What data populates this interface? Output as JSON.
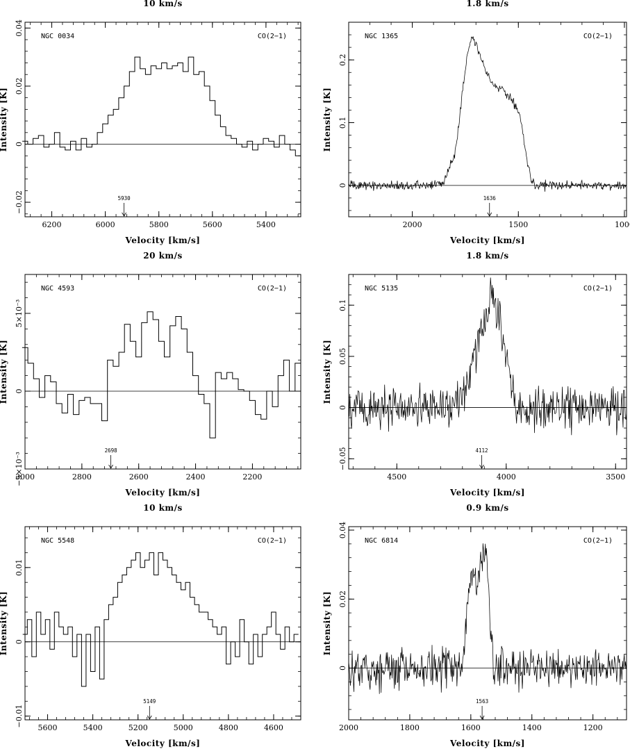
{
  "chart_data": [
    {
      "type": "line",
      "resolution": "10 km/s",
      "galaxy": "NGC 0034",
      "line": "CO(2−1)",
      "xlabel": "Velocity  [km/s]",
      "ylabel": "Intensity [K]",
      "xlim": [
        6300,
        5270
      ],
      "ylim": [
        -0.025,
        0.042
      ],
      "xticks": [
        6200,
        6000,
        5800,
        5600,
        5400
      ],
      "xtick_labels": [
        "6200",
        "6000",
        "5800",
        "5600",
        "5400"
      ],
      "yticks": [
        -0.02,
        0,
        0.02,
        0.04
      ],
      "ytick_labels": [
        "−0.02",
        "0",
        "0.02",
        "0.04"
      ],
      "marker": {
        "x": 5930,
        "label": "5930"
      },
      "series": [
        {
          "x": [
            6300,
            6280,
            6260,
            6240,
            6220,
            6200,
            6180,
            6160,
            6140,
            6120,
            6100,
            6080,
            6060,
            6040,
            6020,
            6000,
            5980,
            5960,
            5940,
            5920,
            5900,
            5880,
            5860,
            5840,
            5820,
            5800,
            5780,
            5760,
            5740,
            5720,
            5700,
            5680,
            5660,
            5640,
            5620,
            5600,
            5580,
            5560,
            5540,
            5520,
            5500,
            5480,
            5460,
            5440,
            5420,
            5400,
            5380,
            5360,
            5340,
            5320,
            5300,
            5280
          ],
          "values": [
            0.001,
            0.0,
            0.002,
            0.003,
            -0.001,
            0.0,
            0.004,
            -0.001,
            -0.002,
            0.001,
            -0.002,
            0.002,
            -0.001,
            0.0,
            0.004,
            0.007,
            0.01,
            0.012,
            0.016,
            0.02,
            0.025,
            0.03,
            0.026,
            0.024,
            0.027,
            0.026,
            0.028,
            0.026,
            0.027,
            0.028,
            0.025,
            0.03,
            0.024,
            0.025,
            0.02,
            0.015,
            0.01,
            0.006,
            0.003,
            0.002,
            0.0,
            -0.001,
            0.001,
            -0.002,
            0.0,
            0.002,
            0.001,
            -0.001,
            0.003,
            0.0,
            -0.002,
            -0.004
          ]
        }
      ]
    },
    {
      "type": "line",
      "resolution": "1.8 km/s",
      "galaxy": "NGC 1365",
      "line": "CO(2−1)",
      "xlabel": "Velocity  [km/s]",
      "ylabel": "Intensity [K]",
      "xlim": [
        2300,
        990
      ],
      "ylim": [
        -0.05,
        0.26
      ],
      "xticks": [
        2000,
        1500,
        1000
      ],
      "xtick_labels": [
        "2000",
        "1500",
        "1000"
      ],
      "yticks": [
        0,
        0.1,
        0.2
      ],
      "ytick_labels": [
        "0",
        "0.1",
        "0.2"
      ],
      "marker": {
        "x": 1636,
        "label": "1636"
      },
      "series": [
        {
          "x": [
            2300,
            1900,
            1850,
            1800,
            1780,
            1760,
            1740,
            1720,
            1700,
            1680,
            1650,
            1620,
            1600,
            1580,
            1560,
            1540,
            1520,
            1500,
            1480,
            1460,
            1440,
            1420,
            1400,
            990
          ],
          "values": [
            0.0,
            0.0,
            0.005,
            0.05,
            0.1,
            0.16,
            0.21,
            0.24,
            0.225,
            0.21,
            0.18,
            0.16,
            0.155,
            0.157,
            0.15,
            0.14,
            0.13,
            0.12,
            0.09,
            0.04,
            0.01,
            0.0,
            0.0,
            0.0
          ]
        }
      ]
    },
    {
      "type": "line",
      "resolution": "20 km/s",
      "galaxy": "NGC 4593",
      "line": "CO(2−1)",
      "xlabel": "Velocity  [km/s]",
      "ylabel": "Intensity [K]",
      "xlim": [
        3000,
        2030
      ],
      "ylim": [
        -0.005,
        0.0075
      ],
      "xticks": [
        3000,
        2800,
        2600,
        2400,
        2200
      ],
      "xtick_labels": [
        "3000",
        "2800",
        "2600",
        "2400",
        "2200"
      ],
      "yticks": [
        -0.005,
        0,
        0.005
      ],
      "ytick_labels": [
        "−5×10⁻³",
        "0",
        "5×10⁻³"
      ],
      "marker": {
        "x": 2698,
        "label": "2698"
      },
      "series": [
        {
          "x": [
            3000,
            2980,
            2960,
            2940,
            2920,
            2900,
            2880,
            2860,
            2840,
            2820,
            2800,
            2780,
            2760,
            2740,
            2720,
            2700,
            2680,
            2660,
            2640,
            2620,
            2600,
            2580,
            2560,
            2540,
            2520,
            2500,
            2480,
            2460,
            2440,
            2420,
            2400,
            2380,
            2360,
            2340,
            2320,
            2300,
            2280,
            2260,
            2240,
            2220,
            2200,
            2180,
            2160,
            2140,
            2120,
            2100,
            2080,
            2060,
            2040
          ],
          "values": [
            0.0028,
            0.0018,
            0.0008,
            -0.0004,
            0.001,
            0.0006,
            -0.0008,
            -0.0014,
            -0.0002,
            -0.0015,
            -0.0006,
            -0.0004,
            -0.0008,
            -0.0008,
            -0.0019,
            0.002,
            0.0016,
            0.0025,
            0.0043,
            0.0032,
            0.0022,
            0.0044,
            0.0051,
            0.0046,
            0.0032,
            0.0022,
            0.0042,
            0.0048,
            0.004,
            0.0025,
            0.001,
            -0.0002,
            -0.0008,
            -0.003,
            0.0012,
            0.0008,
            0.0012,
            0.0008,
            0.0001,
            0.0,
            -0.0006,
            -0.0015,
            -0.0018,
            0.0,
            -0.001,
            0.001,
            0.002,
            0.0,
            0.0018
          ]
        }
      ]
    },
    {
      "type": "line",
      "resolution": "1.8 km/s",
      "galaxy": "NGC 5135",
      "line": "CO(2−1)",
      "xlabel": "Velocity  [km/s]",
      "ylabel": "Intensity [K]",
      "xlim": [
        4720,
        3450
      ],
      "ylim": [
        -0.06,
        0.13
      ],
      "xticks": [
        4500,
        4000,
        3500
      ],
      "xtick_labels": [
        "4500",
        "4000",
        "3500"
      ],
      "yticks": [
        -0.05,
        0,
        0.05,
        0.1
      ],
      "ytick_labels": [
        "−0.05",
        "0",
        "0.05",
        "0.1"
      ],
      "marker": {
        "x": 4112,
        "label": "4112"
      },
      "series": [
        {
          "x": [
            4720,
            4250,
            4200,
            4160,
            4120,
            4090,
            4070,
            4050,
            4030,
            4010,
            3980,
            3950,
            3450
          ],
          "values": [
            0.0,
            0.0,
            0.01,
            0.04,
            0.07,
            0.09,
            0.11,
            0.1,
            0.09,
            0.06,
            0.03,
            0.0,
            0.0
          ]
        }
      ]
    },
    {
      "type": "line",
      "resolution": "10 km/s",
      "galaxy": "NGC 5548",
      "line": "CO(2−1)",
      "xlabel": "Velocity  [km/s]",
      "ylabel": "Intensity [K]",
      "xlim": [
        5700,
        4480
      ],
      "ylim": [
        -0.0105,
        0.0155
      ],
      "xticks": [
        5600,
        5400,
        5200,
        5000,
        4800,
        4600
      ],
      "xtick_labels": [
        "5600",
        "5400",
        "5200",
        "5000",
        "4800",
        "4600"
      ],
      "yticks": [
        -0.01,
        0,
        0.01
      ],
      "ytick_labels": [
        "−0.01",
        "0",
        "0.01"
      ],
      "marker": {
        "x": 5149,
        "label": "5149"
      },
      "series": [
        {
          "x": [
            5700,
            5680,
            5660,
            5640,
            5620,
            5600,
            5580,
            5560,
            5540,
            5520,
            5500,
            5480,
            5460,
            5440,
            5420,
            5400,
            5380,
            5360,
            5340,
            5320,
            5300,
            5280,
            5260,
            5240,
            5220,
            5200,
            5180,
            5160,
            5140,
            5120,
            5100,
            5080,
            5060,
            5040,
            5020,
            5000,
            4980,
            4960,
            4940,
            4920,
            4900,
            4880,
            4860,
            4840,
            4820,
            4800,
            4780,
            4760,
            4740,
            4720,
            4700,
            4680,
            4660,
            4640,
            4620,
            4600,
            4580,
            4560,
            4540,
            4520,
            4500
          ],
          "values": [
            0.001,
            0.003,
            -0.002,
            0.004,
            0.001,
            0.003,
            -0.001,
            0.004,
            0.002,
            0.001,
            0.002,
            -0.002,
            0.001,
            -0.006,
            0.001,
            -0.004,
            0.002,
            -0.005,
            0.003,
            0.005,
            0.006,
            0.008,
            0.009,
            0.01,
            0.011,
            0.012,
            0.01,
            0.011,
            0.012,
            0.009,
            0.012,
            0.011,
            0.01,
            0.009,
            0.008,
            0.007,
            0.008,
            0.006,
            0.005,
            0.004,
            0.004,
            0.003,
            0.002,
            0.001,
            0.002,
            -0.003,
            0.0,
            -0.002,
            0.003,
            0.0,
            -0.003,
            0.001,
            -0.002,
            0.001,
            0.002,
            0.004,
            0.001,
            -0.001,
            0.002,
            0.0,
            0.001
          ]
        }
      ]
    },
    {
      "type": "line",
      "resolution": "0.9 km/s",
      "galaxy": "NGC 6814",
      "line": "CO(2−1)",
      "xlabel": "Velocity  [km/s]",
      "ylabel": "Intensity [K]",
      "xlim": [
        2000,
        1090
      ],
      "ylim": [
        -0.015,
        0.041
      ],
      "xticks": [
        2000,
        1800,
        1600,
        1400,
        1200
      ],
      "xtick_labels": [
        "2000",
        "1800",
        "1600",
        "1400",
        "1200"
      ],
      "yticks": [
        0,
        0.02,
        0.04
      ],
      "ytick_labels": [
        "0",
        "0.02",
        "0.04"
      ],
      "marker": {
        "x": 1563,
        "label": "1563"
      },
      "series": [
        {
          "x": [
            2000,
            1630,
            1620,
            1610,
            1600,
            1590,
            1580,
            1570,
            1560,
            1550,
            1545,
            1535,
            1525,
            1090
          ],
          "values": [
            0.0,
            0.0,
            0.008,
            0.02,
            0.027,
            0.026,
            0.025,
            0.03,
            0.032,
            0.036,
            0.03,
            0.012,
            0.0,
            0.0
          ]
        }
      ]
    }
  ]
}
